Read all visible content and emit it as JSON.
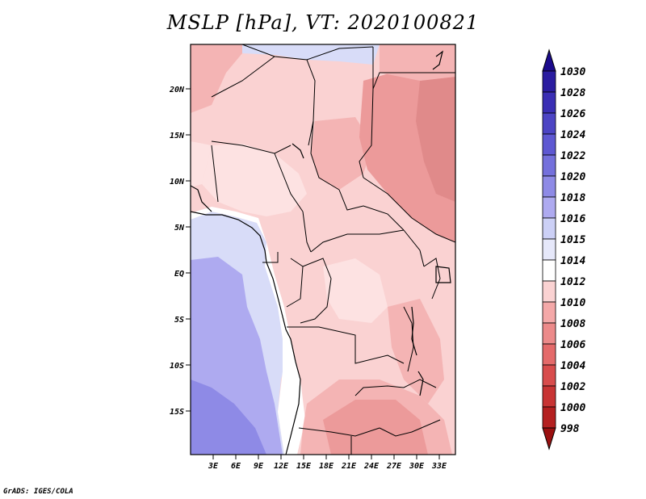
{
  "title": "MSLP [hPa], VT: 2020100821",
  "credit": "GrADS: IGES/COLA",
  "axes": {
    "lat_labels": [
      "20N",
      "15N",
      "10N",
      "5N",
      "EQ",
      "5S",
      "10S",
      "15S"
    ],
    "lon_labels": [
      "3E",
      "6E",
      "9E",
      "12E",
      "15E",
      "18E",
      "21E",
      "24E",
      "27E",
      "30E",
      "33E"
    ]
  },
  "colorbar": {
    "levels": [
      "1030",
      "1028",
      "1026",
      "1024",
      "1022",
      "1020",
      "1018",
      "1016",
      "1015",
      "1014",
      "1012",
      "1010",
      "1008",
      "1006",
      "1004",
      "1002",
      "1000",
      "998"
    ],
    "colors": [
      "#1b0a8c",
      "#2a1ca0",
      "#3a2eb4",
      "#4c44c4",
      "#5e58d2",
      "#7470dc",
      "#8e8ae6",
      "#aeaaf0",
      "#ccd0f6",
      "#e6e8fa",
      "#ffffff",
      "#fad2d2",
      "#f4a8a8",
      "#ec8a8a",
      "#e46a6a",
      "#d84c4c",
      "#c83434",
      "#b42020",
      "#9a1010"
    ]
  },
  "fill_colors": {
    "ocean_deep": "#8e8ae6",
    "ocean_mid": "#aeaaf0",
    "ocean_light": "#d8dcf8",
    "white": "#ffffff",
    "pink_light": "#fde2e2",
    "pink": "#fad2d2",
    "pink_mid": "#f4b4b4",
    "rose": "#ec9a9a",
    "rose_dark": "#e08a8a"
  }
}
